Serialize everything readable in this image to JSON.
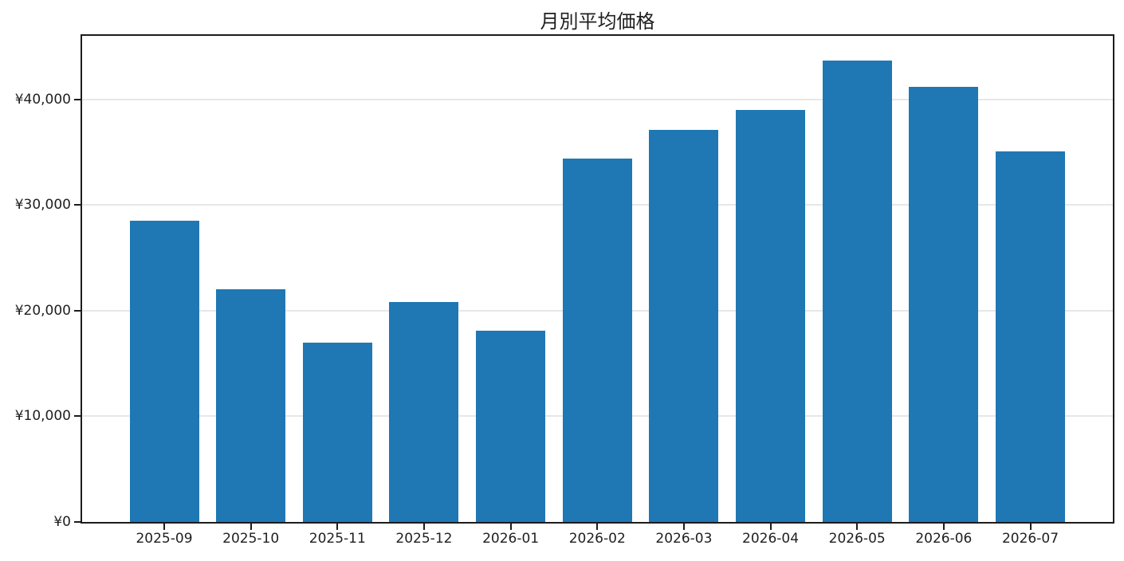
{
  "chart_data": {
    "type": "bar",
    "title": "月別平均価格",
    "categories": [
      "2025-09",
      "2025-10",
      "2025-11",
      "2025-12",
      "2026-01",
      "2026-02",
      "2026-03",
      "2026-04",
      "2026-05",
      "2026-06",
      "2026-07"
    ],
    "values": [
      28500,
      22000,
      17000,
      20800,
      18100,
      34400,
      37100,
      39000,
      43700,
      41200,
      35100
    ],
    "xlabel": "",
    "ylabel": "",
    "ylim": [
      0,
      46000
    ],
    "y_ticks": [
      {
        "value": 0,
        "label": "¥0"
      },
      {
        "value": 10000,
        "label": "¥10,000"
      },
      {
        "value": 20000,
        "label": "¥20,000"
      },
      {
        "value": 30000,
        "label": "¥30,000"
      },
      {
        "value": 40000,
        "label": "¥40,000"
      }
    ],
    "grid": true,
    "legend": false,
    "bar_color": "#1f77b4",
    "grid_color": "#e7e7e7",
    "axis_color": "#1c1c1c",
    "text_color": "#1f1f1f",
    "background_color": "#ffffff"
  }
}
